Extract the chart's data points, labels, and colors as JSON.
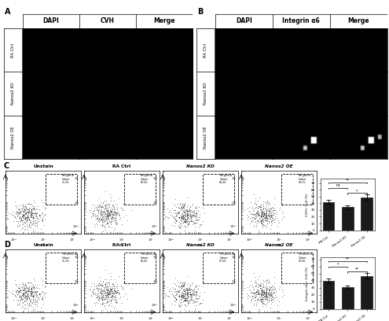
{
  "panel_A_label": "A",
  "panel_B_label": "B",
  "panel_C_label": "C",
  "panel_D_label": "D",
  "panel_A_cols": [
    "DAPI",
    "CVH",
    "Merge"
  ],
  "panel_B_cols": [
    "DAPI",
    "Integrin α6",
    "Merge"
  ],
  "panel_AB_rows": [
    "RA Ctrl",
    "Nanos2 KO",
    "Nanos2 OE"
  ],
  "panel_C_titles": [
    "Unstain",
    "RA Ctrl",
    "Nanos2 KO",
    "Nanos2 OE"
  ],
  "panel_D_titles": [
    "Unstain",
    "RA Ctrl",
    "Nanos2 KO",
    "Nanos2 OE"
  ],
  "bar_C_values": [
    42,
    34,
    49
  ],
  "bar_D_values": [
    40,
    31,
    47
  ],
  "bar_C_labels": [
    "RA Ctrl",
    "Nanos2 KO",
    "Nanos2 OE"
  ],
  "bar_D_labels": [
    "RA Ctrl",
    "Nanos2 KO",
    "Nanos2 OE"
  ],
  "bar_C_ylabel": "CVH+ Cell (%)",
  "bar_D_ylabel": "Integrin α6+ Cell (%)",
  "bar_color": "#1a1a1a",
  "bg_color": "#000000",
  "white": "#ffffff",
  "fig_bg": "#ffffff",
  "sig_C_ns": "ns",
  "sig_C_star1": "*",
  "sig_C_star2": "**",
  "sig_D_star0": "**",
  "sig_D_star1": "*",
  "sig_D_star2": "**",
  "gate_text_C": [
    "Pre-gate-A\nSubset\n91.2%",
    "Pre-gate-A\nSubset\n88.6%",
    "Pre-gate-A\nSubset\n89.4%",
    "Pre-gate-A\nSubset\n93.1%"
  ],
  "gate_text_D": [
    "TFH-A BCC-A\nSubset\n91.2%",
    "TFH-A BCC-A\nSubset\n88.4%",
    "TFH-A BCC-A\nSubset\n87.6%",
    "TFH-A BCC-A\nSubset\n92.4%"
  ]
}
